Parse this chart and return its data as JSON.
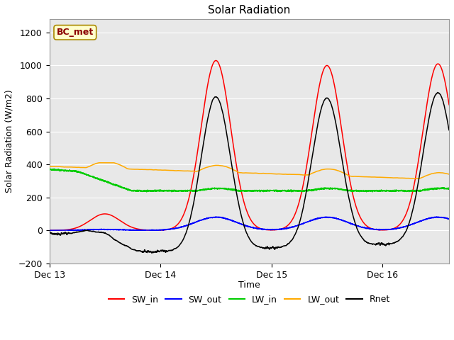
{
  "title": "Solar Radiation",
  "ylabel": "Solar Radiation (W/m2)",
  "xlabel": "Time",
  "ylim": [
    -200,
    1280
  ],
  "yticks": [
    -200,
    0,
    200,
    400,
    600,
    800,
    1000,
    1200
  ],
  "xlim": [
    0,
    86.4
  ],
  "tick_hours": [
    0,
    24,
    48,
    72
  ],
  "tick_labels": [
    "Dec 13",
    "Dec 14",
    "Dec 15",
    "Dec 16"
  ],
  "annotation": "BC_met",
  "fig_bg": "#ffffff",
  "plot_bg": "#e8e8e8",
  "grid_color": "#ffffff",
  "series": {
    "SW_in": {
      "color": "#ff0000",
      "label": "SW_in"
    },
    "SW_out": {
      "color": "#0000ff",
      "label": "SW_out"
    },
    "LW_in": {
      "color": "#00cc00",
      "label": "LW_in"
    },
    "LW_out": {
      "color": "#ffaa00",
      "label": "LW_out"
    },
    "Rnet": {
      "color": "#000000",
      "label": "Rnet"
    }
  }
}
